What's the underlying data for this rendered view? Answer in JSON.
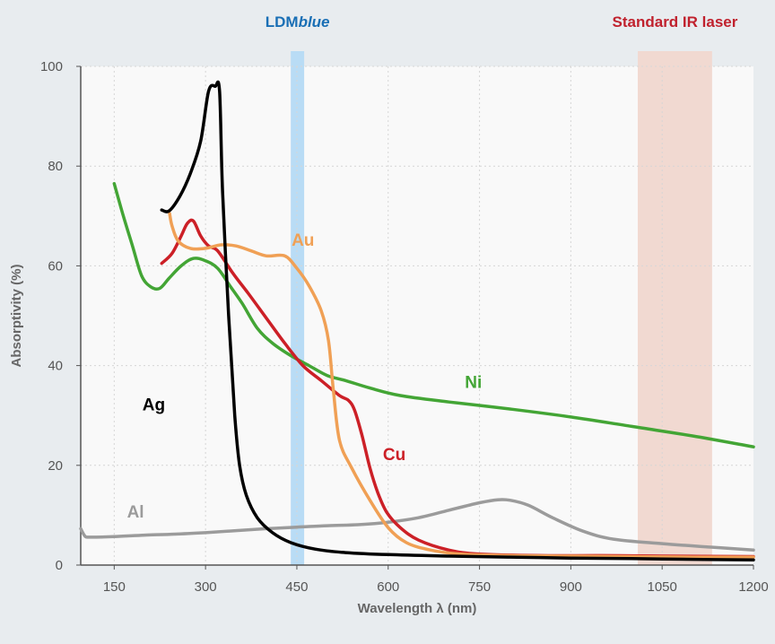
{
  "chart_data": {
    "type": "line",
    "xlabel": "Wavelength λ (nm)",
    "ylabel": "Absorptivity (%)",
    "xlim": [
      95,
      1200
    ],
    "ylim": [
      0,
      100
    ],
    "xticks": [
      "150",
      "300",
      "450",
      "600",
      "750",
      "900",
      "1050",
      "1200"
    ],
    "yticks": [
      "0",
      "20",
      "40",
      "60",
      "80",
      "100"
    ],
    "grid": true,
    "bands": [
      {
        "label_prefix": "LDM",
        "label_suffix": "blue",
        "x_range": [
          440,
          462
        ],
        "color": "#b9dcf5",
        "label_color": "#1a6fb5"
      },
      {
        "label_prefix": "Standard IR laser",
        "label_suffix": "",
        "x_range": [
          1010,
          1132
        ],
        "color": "#f1d9d1",
        "label_color": "#c0212d"
      }
    ],
    "series": [
      {
        "name": "Ag",
        "color": "#000000",
        "label_pos": [
          215,
          31
        ],
        "points": [
          [
            228,
            71.2
          ],
          [
            240,
            71
          ],
          [
            258,
            74
          ],
          [
            275,
            78.5
          ],
          [
            292,
            85
          ],
          [
            305,
            95
          ],
          [
            316,
            96
          ],
          [
            323,
            95
          ],
          [
            328,
            75
          ],
          [
            338,
            50
          ],
          [
            348,
            30
          ],
          [
            356,
            20
          ],
          [
            367,
            14
          ],
          [
            385,
            9.5
          ],
          [
            410,
            6.5
          ],
          [
            440,
            4.5
          ],
          [
            480,
            3.2
          ],
          [
            530,
            2.5
          ],
          [
            600,
            2.1
          ],
          [
            700,
            1.8
          ],
          [
            800,
            1.6
          ],
          [
            900,
            1.4
          ],
          [
            1000,
            1.3
          ],
          [
            1100,
            1.15
          ],
          [
            1200,
            1.05
          ]
        ]
      },
      {
        "name": "Au",
        "color": "#f0a055",
        "label_pos": [
          460,
          64
        ],
        "points": [
          [
            241,
            70.5
          ],
          [
            245,
            68
          ],
          [
            255,
            65
          ],
          [
            275,
            63.5
          ],
          [
            300,
            63.5
          ],
          [
            325,
            64.2
          ],
          [
            350,
            64
          ],
          [
            375,
            63
          ],
          [
            400,
            62
          ],
          [
            430,
            62
          ],
          [
            450,
            59.5
          ],
          [
            470,
            56
          ],
          [
            490,
            51
          ],
          [
            502,
            45
          ],
          [
            510,
            35
          ],
          [
            520,
            25
          ],
          [
            540,
            19.5
          ],
          [
            570,
            13
          ],
          [
            600,
            7.5
          ],
          [
            630,
            4.5
          ],
          [
            670,
            3
          ],
          [
            720,
            2.2
          ],
          [
            800,
            1.9
          ],
          [
            900,
            1.8
          ],
          [
            1000,
            1.7
          ],
          [
            1100,
            1.6
          ],
          [
            1200,
            1.6
          ]
        ]
      },
      {
        "name": "Cu",
        "color": "#cc2027",
        "label_pos": [
          610,
          21
        ],
        "points": [
          [
            228,
            60.5
          ],
          [
            245,
            62.5
          ],
          [
            260,
            66
          ],
          [
            270,
            68.5
          ],
          [
            280,
            69
          ],
          [
            292,
            66
          ],
          [
            305,
            64
          ],
          [
            320,
            63
          ],
          [
            345,
            58.5
          ],
          [
            370,
            54.5
          ],
          [
            400,
            49.5
          ],
          [
            430,
            44.5
          ],
          [
            460,
            40
          ],
          [
            490,
            37
          ],
          [
            520,
            34
          ],
          [
            535,
            33
          ],
          [
            545,
            31
          ],
          [
            557,
            26
          ],
          [
            570,
            19.5
          ],
          [
            583,
            14.5
          ],
          [
            598,
            10.5
          ],
          [
            620,
            7.5
          ],
          [
            650,
            5
          ],
          [
            700,
            3
          ],
          [
            750,
            2.2
          ],
          [
            850,
            1.9
          ],
          [
            950,
            1.9
          ],
          [
            1050,
            1.8
          ],
          [
            1200,
            1.7
          ]
        ]
      },
      {
        "name": "Ni",
        "color": "#43a535",
        "label_pos": [
          740,
          35.5
        ],
        "points": [
          [
            150,
            76.5
          ],
          [
            165,
            70
          ],
          [
            180,
            64
          ],
          [
            195,
            58
          ],
          [
            210,
            55.8
          ],
          [
            225,
            55.5
          ],
          [
            240,
            57.5
          ],
          [
            260,
            60
          ],
          [
            280,
            61.5
          ],
          [
            300,
            61
          ],
          [
            320,
            59.5
          ],
          [
            340,
            56
          ],
          [
            360,
            52.5
          ],
          [
            385,
            47.5
          ],
          [
            410,
            44.5
          ],
          [
            440,
            42
          ],
          [
            470,
            40
          ],
          [
            500,
            38
          ],
          [
            530,
            37
          ],
          [
            570,
            35.5
          ],
          [
            620,
            34
          ],
          [
            700,
            32.7
          ],
          [
            800,
            31.3
          ],
          [
            900,
            29.7
          ],
          [
            1000,
            27.8
          ],
          [
            1100,
            25.9
          ],
          [
            1200,
            23.7
          ]
        ]
      },
      {
        "name": "Al",
        "color": "#9b9b9b",
        "label_pos": [
          185,
          9.5
        ],
        "points": [
          [
            95,
            7.3
          ],
          [
            102,
            5.8
          ],
          [
            110,
            5.6
          ],
          [
            150,
            5.7
          ],
          [
            200,
            6
          ],
          [
            250,
            6.2
          ],
          [
            300,
            6.5
          ],
          [
            350,
            6.9
          ],
          [
            400,
            7.3
          ],
          [
            450,
            7.6
          ],
          [
            500,
            7.9
          ],
          [
            550,
            8.1
          ],
          [
            600,
            8.6
          ],
          [
            650,
            9.5
          ],
          [
            700,
            11
          ],
          [
            750,
            12.5
          ],
          [
            780,
            13.1
          ],
          [
            800,
            13
          ],
          [
            830,
            12
          ],
          [
            870,
            9.5
          ],
          [
            920,
            6.8
          ],
          [
            970,
            5.2
          ],
          [
            1050,
            4.3
          ],
          [
            1130,
            3.6
          ],
          [
            1200,
            3
          ]
        ]
      }
    ]
  }
}
